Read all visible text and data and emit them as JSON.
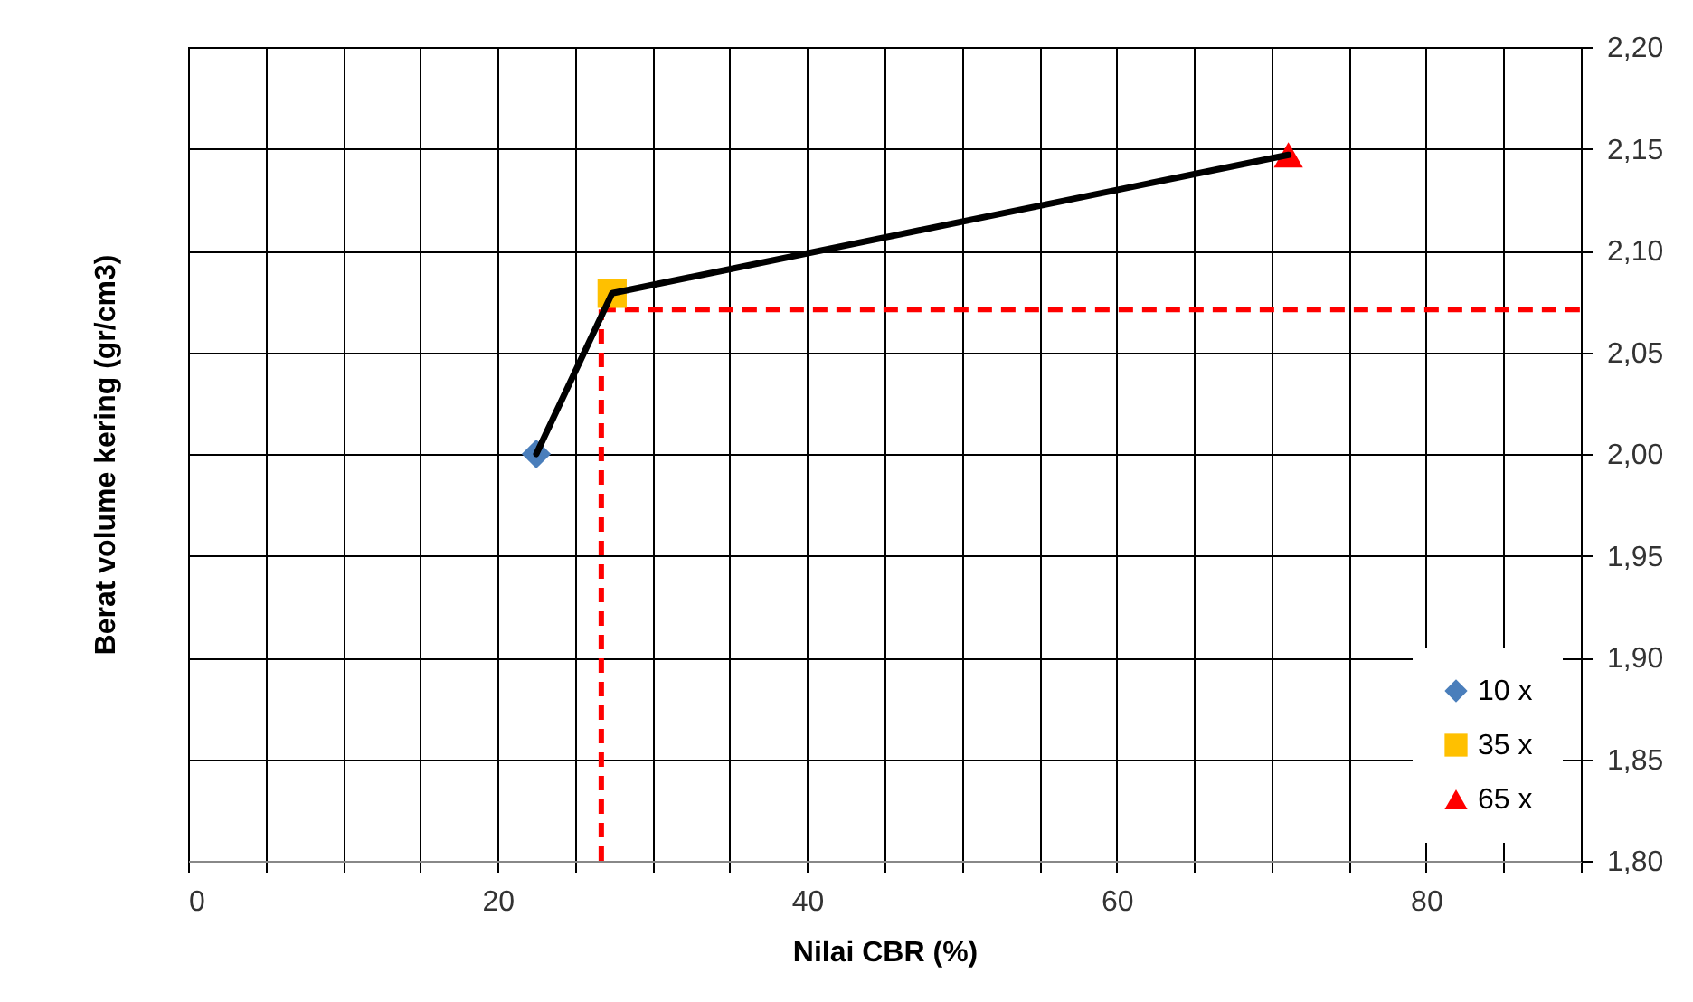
{
  "chart_data": {
    "type": "line",
    "xlabel": "Nilai CBR (%)",
    "ylabel": "Berat volume kering (gr/cm3)",
    "xlim": [
      0,
      90
    ],
    "xticks": [
      0,
      {
        "value": 5,
        "label": null
      },
      {
        "value": 10,
        "label": null
      },
      {
        "value": 15,
        "label": null
      },
      20,
      {
        "value": 25,
        "label": null
      },
      {
        "value": 30,
        "label": null
      },
      {
        "value": 35,
        "label": null
      },
      40,
      {
        "value": 45,
        "label": null
      },
      {
        "value": 50,
        "label": null
      },
      {
        "value": 55,
        "label": null
      },
      60,
      {
        "value": 65,
        "label": null
      },
      {
        "value": 70,
        "label": null
      },
      {
        "value": 75,
        "label": null
      },
      80,
      {
        "value": 85,
        "label": null
      },
      {
        "value": 90,
        "label": null
      }
    ],
    "ylim": [
      1.8,
      2.2
    ],
    "yticks": [
      {
        "value": 1.8,
        "label": "1,80"
      },
      {
        "value": 1.85,
        "label": "1,85"
      },
      {
        "value": 1.9,
        "label": "1,90"
      },
      {
        "value": 1.95,
        "label": "1,95"
      },
      {
        "value": 2.0,
        "label": "2,00"
      },
      {
        "value": 2.05,
        "label": "2,05"
      },
      {
        "value": 2.1,
        "label": "2,10"
      },
      {
        "value": 2.15,
        "label": "2,15"
      },
      {
        "value": 2.2,
        "label": "2,20"
      }
    ],
    "grid": true,
    "legend": "bottom right",
    "series": [
      {
        "color": "#000000",
        "marker": "none",
        "x": [
          22.5,
          27.4,
          71.1
        ],
        "values": [
          2.0,
          2.079,
          2.147
        ]
      },
      {
        "name": "10 x",
        "color": "#4a7ebb",
        "marker": "diamond",
        "x": [
          22.5
        ],
        "values": [
          2.0
        ]
      },
      {
        "name": "35 x",
        "color": "#ffc000",
        "marker": "square",
        "x": [
          27.4
        ],
        "values": [
          2.079
        ]
      },
      {
        "name": "65 x",
        "color": "#ff0000",
        "marker": "triangle",
        "x": [
          71.1
        ],
        "values": [
          2.147
        ]
      }
    ],
    "ref_lines": [
      {
        "axis": "x",
        "value": 26.7,
        "color": "#ff0000",
        "line_style": "dashed"
      },
      {
        "axis": "y",
        "value": 2.071,
        "color": "#ff0000",
        "line_style": "dashed"
      }
    ]
  }
}
